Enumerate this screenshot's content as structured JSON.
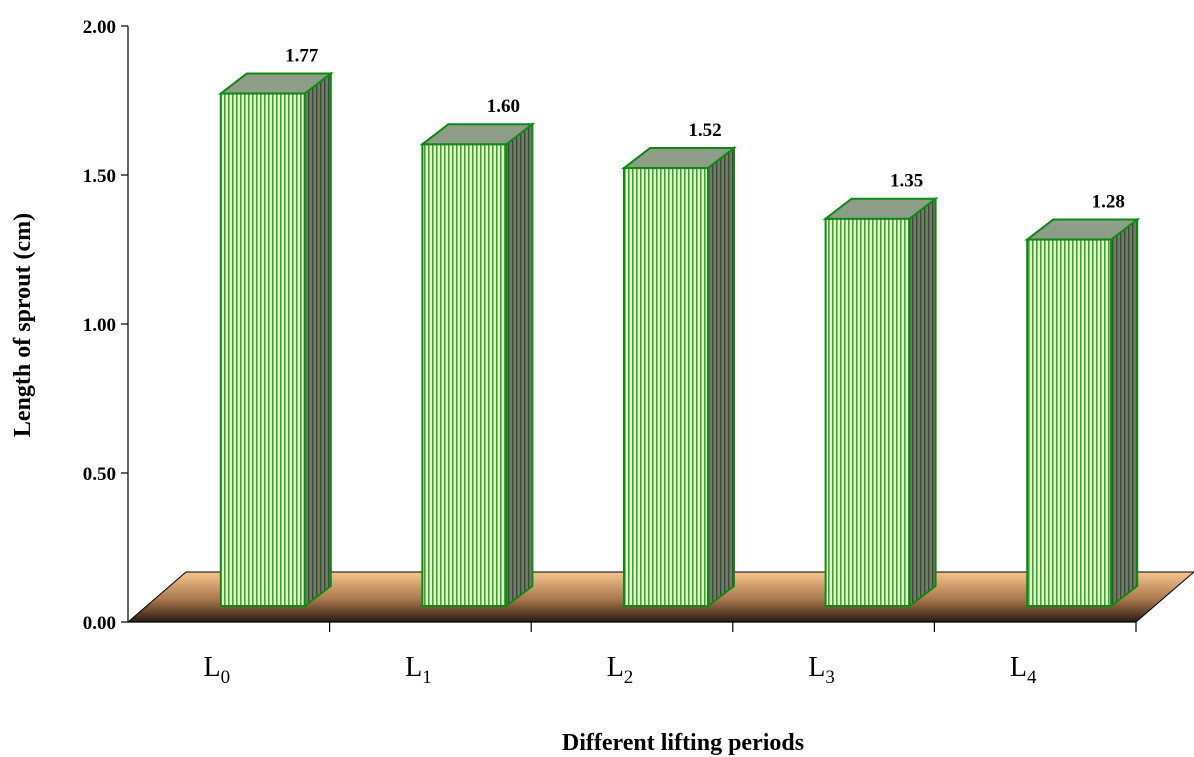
{
  "chart_data": {
    "type": "bar",
    "title": "",
    "xlabel": "Different lifting periods",
    "ylabel": "Length of sprout (cm)",
    "ylim": [
      0,
      2
    ],
    "yticks": [
      "0.00",
      "0.50",
      "1.00",
      "1.50",
      "2.00"
    ],
    "categories": [
      "L0",
      "L1",
      "L2",
      "L3",
      "L4"
    ],
    "category_display": [
      {
        "base": "L",
        "sub": "0"
      },
      {
        "base": "L",
        "sub": "1"
      },
      {
        "base": "L",
        "sub": "2"
      },
      {
        "base": "L",
        "sub": "3"
      },
      {
        "base": "L",
        "sub": "4"
      }
    ],
    "values": [
      1.77,
      1.6,
      1.52,
      1.35,
      1.28
    ],
    "value_labels": [
      "1.77",
      "1.60",
      "1.52",
      "1.35",
      "1.28"
    ],
    "colors": {
      "bar_front": "#e6f5d0",
      "bar_stripe": "#3aa62e",
      "bar_edge": "#0c8a12",
      "bar_side": "#5c6b55",
      "bar_top": "#8e9d88",
      "floor_light": "#f6c48e",
      "floor_dark": "#2b1a10"
    },
    "grid": false,
    "legend": "none",
    "style": "3d-column"
  }
}
